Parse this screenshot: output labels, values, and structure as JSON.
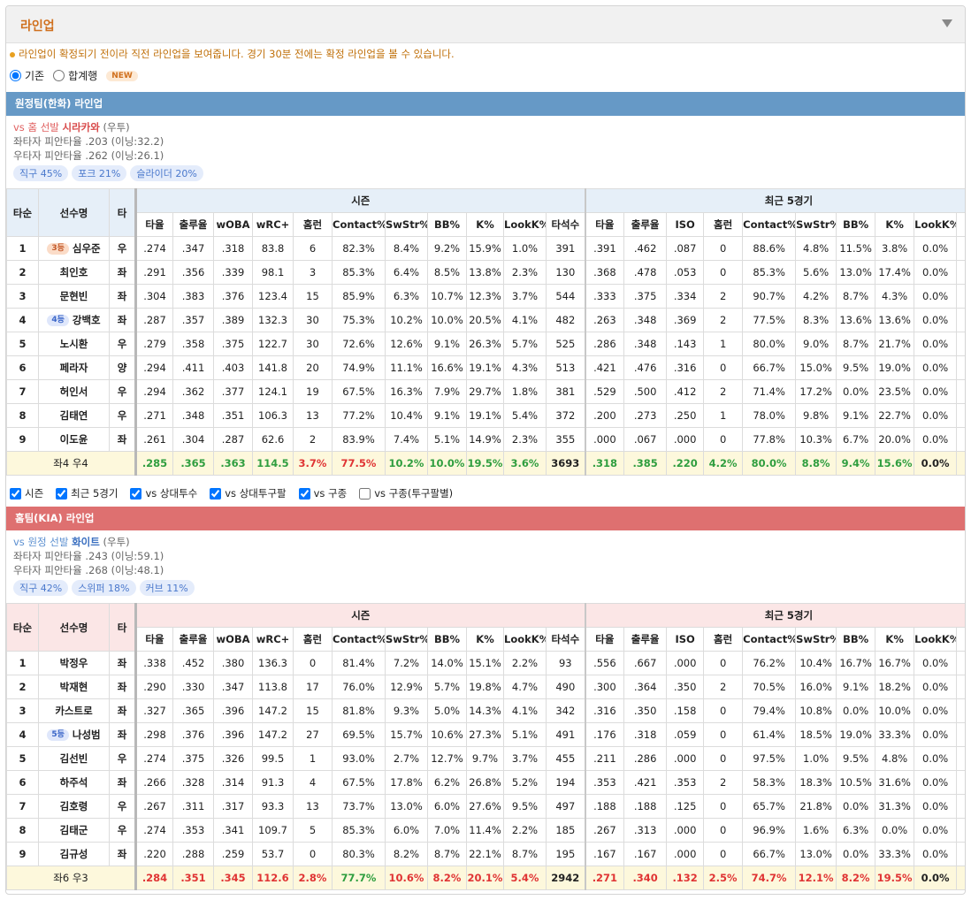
{
  "header": {
    "title": "라인업"
  },
  "notice": "라인업이 확정되기 전이라 직전 라인업을 보여줍니다. 경기 30분 전에는 확정 라인업을 볼 수 있습니다.",
  "options": [
    {
      "label": "기존",
      "checked": true
    },
    {
      "label": "합계행",
      "checked": false
    }
  ],
  "new_badge": "NEW",
  "filters": [
    {
      "label": "시즌",
      "checked": true
    },
    {
      "label": "최근 5경기",
      "checked": true
    },
    {
      "label": "vs 상대투수",
      "checked": true
    },
    {
      "label": "vs 상대투구팔",
      "checked": true
    },
    {
      "label": "vs 구종",
      "checked": true
    },
    {
      "label": "vs 구종(투구팔별)",
      "checked": false
    }
  ],
  "table_header": {
    "fixed": [
      "타순",
      "선수명",
      "타"
    ],
    "groups": [
      "시즌",
      "최근 5경기"
    ],
    "season_cols": [
      "타율",
      "출루율",
      "wOBA",
      "wRC+",
      "홈런",
      "Contact%",
      "SwStr%",
      "BB%",
      "K%",
      "LookK%",
      "타석수"
    ],
    "recent_cols": [
      "타율",
      "출루율",
      "ISO",
      "홈런",
      "Contact%",
      "SwStr%",
      "BB%",
      "K%",
      "LookK%"
    ]
  },
  "teams": [
    {
      "title": "원정팀(한화) 라인업",
      "bar_color": "#6699c6",
      "head_color": "#e6eff8",
      "vs": "vs 홈 선발",
      "vs_color": "#e06060",
      "pitcher": "시라카와",
      "pitcher_color": "#d84a4a",
      "throws": "(우투)",
      "splits": [
        "좌타자 피안타율 .203 (이닝:32.2)",
        "우타자 피안타율 .262 (이닝:26.1)"
      ],
      "pitches": [
        "직구 45%",
        "포크 21%",
        "슬라이더 20%"
      ],
      "rows": [
        {
          "order": "1",
          "badge": "3등",
          "name": "심우준",
          "hand": "우",
          "season": [
            ".274",
            ".347",
            ".318",
            "83.8",
            "6",
            "82.3%",
            "8.4%",
            "9.2%",
            "15.9%",
            "1.0%",
            "391"
          ],
          "recent": [
            ".391",
            ".462",
            ".087",
            "0",
            "88.6%",
            "4.8%",
            "11.5%",
            "3.8%",
            "0.0%"
          ]
        },
        {
          "order": "2",
          "name": "최인호",
          "hand": "좌",
          "season": [
            ".291",
            ".356",
            ".339",
            "98.1",
            "3",
            "85.3%",
            "6.4%",
            "8.5%",
            "13.8%",
            "2.3%",
            "130"
          ],
          "recent": [
            ".368",
            ".478",
            ".053",
            "0",
            "85.3%",
            "5.6%",
            "13.0%",
            "17.4%",
            "0.0%"
          ]
        },
        {
          "order": "3",
          "name": "문현빈",
          "hand": "좌",
          "season": [
            ".304",
            ".383",
            ".376",
            "123.4",
            "15",
            "85.9%",
            "6.3%",
            "10.7%",
            "12.3%",
            "3.7%",
            "544"
          ],
          "recent": [
            ".333",
            ".375",
            ".334",
            "2",
            "90.7%",
            "4.2%",
            "8.7%",
            "4.3%",
            "0.0%"
          ]
        },
        {
          "order": "4",
          "badge": "4등",
          "name": "강백호",
          "hand": "좌",
          "season": [
            ".287",
            ".357",
            ".389",
            "132.3",
            "30",
            "75.3%",
            "10.2%",
            "10.0%",
            "20.5%",
            "4.1%",
            "482"
          ],
          "recent": [
            ".263",
            ".348",
            ".369",
            "2",
            "77.5%",
            "8.3%",
            "13.6%",
            "13.6%",
            "0.0%"
          ]
        },
        {
          "order": "5",
          "name": "노시환",
          "hand": "우",
          "season": [
            ".279",
            ".358",
            ".375",
            "122.7",
            "30",
            "72.6%",
            "12.6%",
            "9.1%",
            "26.3%",
            "5.7%",
            "525"
          ],
          "recent": [
            ".286",
            ".348",
            ".143",
            "1",
            "80.0%",
            "9.0%",
            "8.7%",
            "21.7%",
            "0.0%"
          ]
        },
        {
          "order": "6",
          "name": "페라자",
          "hand": "양",
          "season": [
            ".294",
            ".411",
            ".403",
            "141.8",
            "20",
            "74.9%",
            "11.1%",
            "16.6%",
            "19.1%",
            "4.3%",
            "513"
          ],
          "recent": [
            ".421",
            ".476",
            ".316",
            "0",
            "66.7%",
            "15.0%",
            "9.5%",
            "19.0%",
            "0.0%"
          ]
        },
        {
          "order": "7",
          "name": "허인서",
          "hand": "우",
          "season": [
            ".294",
            ".362",
            ".377",
            "124.1",
            "19",
            "67.5%",
            "16.3%",
            "7.9%",
            "29.7%",
            "1.8%",
            "381"
          ],
          "recent": [
            ".529",
            ".500",
            ".412",
            "2",
            "71.4%",
            "17.2%",
            "0.0%",
            "23.5%",
            "0.0%"
          ]
        },
        {
          "order": "8",
          "name": "김태연",
          "hand": "우",
          "season": [
            ".271",
            ".348",
            ".351",
            "106.3",
            "13",
            "77.2%",
            "10.4%",
            "9.1%",
            "19.1%",
            "5.4%",
            "372"
          ],
          "recent": [
            ".200",
            ".273",
            ".250",
            "1",
            "78.0%",
            "9.8%",
            "9.1%",
            "22.7%",
            "0.0%"
          ]
        },
        {
          "order": "9",
          "name": "이도윤",
          "hand": "좌",
          "season": [
            ".261",
            ".304",
            ".287",
            "62.6",
            "2",
            "83.9%",
            "7.4%",
            "5.1%",
            "14.9%",
            "2.3%",
            "355"
          ],
          "recent": [
            ".000",
            ".067",
            ".000",
            "0",
            "77.8%",
            "10.3%",
            "6.7%",
            "20.0%",
            "0.0%"
          ]
        }
      ],
      "total": {
        "label": "좌4 우4",
        "season": [
          ".285",
          ".365",
          ".363",
          "114.5",
          "3.7%",
          "77.5%",
          "10.2%",
          "10.0%",
          "19.5%",
          "3.6%",
          "3693"
        ],
        "recent": [
          ".318",
          ".385",
          ".220",
          "4.2%",
          "80.0%",
          "8.8%",
          "9.4%",
          "15.6%",
          "0.0%"
        ],
        "season_colors": [
          "#2f9e3f",
          "#2f9e3f",
          "#2f9e3f",
          "#2f9e3f",
          "#e03434",
          "#e03434",
          "#2f9e3f",
          "#2f9e3f",
          "#2f9e3f",
          "#2f9e3f",
          "#222222"
        ],
        "recent_colors": [
          "#2f9e3f",
          "#2f9e3f",
          "#2f9e3f",
          "#2f9e3f",
          "#2f9e3f",
          "#2f9e3f",
          "#2f9e3f",
          "#2f9e3f",
          "#222222"
        ]
      }
    },
    {
      "title": "홈팀(KIA) 라인업",
      "bar_color": "#de7070",
      "head_color": "#fbe6e6",
      "vs": "vs 원정 선발",
      "vs_color": "#5b8fd0",
      "pitcher": "화이트",
      "pitcher_color": "#3a6fc0",
      "throws": "(우투)",
      "splits": [
        "좌타자 피안타율 .243 (이닝:59.1)",
        "우타자 피안타율 .268 (이닝:48.1)"
      ],
      "pitches": [
        "직구 42%",
        "스위퍼 18%",
        "커브 11%"
      ],
      "rows": [
        {
          "order": "1",
          "name": "박정우",
          "hand": "좌",
          "season": [
            ".338",
            ".452",
            ".380",
            "136.3",
            "0",
            "81.4%",
            "7.2%",
            "14.0%",
            "15.1%",
            "2.2%",
            "93"
          ],
          "recent": [
            ".556",
            ".667",
            ".000",
            "0",
            "76.2%",
            "10.4%",
            "16.7%",
            "16.7%",
            "0.0%"
          ]
        },
        {
          "order": "2",
          "name": "박재현",
          "hand": "좌",
          "season": [
            ".290",
            ".330",
            ".347",
            "113.8",
            "17",
            "76.0%",
            "12.9%",
            "5.7%",
            "19.8%",
            "4.7%",
            "490"
          ],
          "recent": [
            ".300",
            ".364",
            ".350",
            "2",
            "70.5%",
            "16.0%",
            "9.1%",
            "18.2%",
            "0.0%"
          ]
        },
        {
          "order": "3",
          "name": "카스트로",
          "hand": "좌",
          "season": [
            ".327",
            ".365",
            ".396",
            "147.2",
            "15",
            "81.8%",
            "9.3%",
            "5.0%",
            "14.3%",
            "4.1%",
            "342"
          ],
          "recent": [
            ".316",
            ".350",
            ".158",
            "0",
            "79.4%",
            "10.8%",
            "0.0%",
            "10.0%",
            "0.0%"
          ]
        },
        {
          "order": "4",
          "badge": "5등",
          "name": "나성범",
          "hand": "좌",
          "season": [
            ".298",
            ".376",
            ".396",
            "147.2",
            "27",
            "69.5%",
            "15.7%",
            "10.6%",
            "27.3%",
            "5.1%",
            "491"
          ],
          "recent": [
            ".176",
            ".318",
            ".059",
            "0",
            "61.4%",
            "18.5%",
            "19.0%",
            "33.3%",
            "0.0%"
          ]
        },
        {
          "order": "5",
          "name": "김선빈",
          "hand": "우",
          "season": [
            ".274",
            ".375",
            ".326",
            "99.5",
            "1",
            "93.0%",
            "2.7%",
            "12.7%",
            "9.7%",
            "3.7%",
            "455"
          ],
          "recent": [
            ".211",
            ".286",
            ".000",
            "0",
            "97.5%",
            "1.0%",
            "9.5%",
            "4.8%",
            "0.0%"
          ]
        },
        {
          "order": "6",
          "name": "하주석",
          "hand": "좌",
          "season": [
            ".266",
            ".328",
            ".314",
            "91.3",
            "4",
            "67.5%",
            "17.8%",
            "6.2%",
            "26.8%",
            "5.2%",
            "194"
          ],
          "recent": [
            ".353",
            ".421",
            ".353",
            "2",
            "58.3%",
            "18.3%",
            "10.5%",
            "31.6%",
            "0.0%"
          ]
        },
        {
          "order": "7",
          "name": "김호령",
          "hand": "우",
          "season": [
            ".267",
            ".311",
            ".317",
            "93.3",
            "13",
            "73.7%",
            "13.0%",
            "6.0%",
            "27.6%",
            "9.5%",
            "497"
          ],
          "recent": [
            ".188",
            ".188",
            ".125",
            "0",
            "65.7%",
            "21.8%",
            "0.0%",
            "31.3%",
            "0.0%"
          ]
        },
        {
          "order": "8",
          "name": "김태군",
          "hand": "우",
          "season": [
            ".274",
            ".353",
            ".341",
            "109.7",
            "5",
            "85.3%",
            "6.0%",
            "7.0%",
            "11.4%",
            "2.2%",
            "185"
          ],
          "recent": [
            ".267",
            ".313",
            ".000",
            "0",
            "96.9%",
            "1.6%",
            "6.3%",
            "0.0%",
            "0.0%"
          ]
        },
        {
          "order": "9",
          "name": "김규성",
          "hand": "좌",
          "season": [
            ".220",
            ".288",
            ".259",
            "53.7",
            "0",
            "80.3%",
            "8.2%",
            "8.7%",
            "22.1%",
            "8.7%",
            "195"
          ],
          "recent": [
            ".167",
            ".167",
            ".000",
            "0",
            "66.7%",
            "13.0%",
            "0.0%",
            "33.3%",
            "0.0%"
          ]
        }
      ],
      "total": {
        "label": "좌6 우3",
        "season": [
          ".284",
          ".351",
          ".345",
          "112.6",
          "2.8%",
          "77.7%",
          "10.6%",
          "8.2%",
          "20.1%",
          "5.4%",
          "2942"
        ],
        "recent": [
          ".271",
          ".340",
          ".132",
          "2.5%",
          "74.7%",
          "12.1%",
          "8.2%",
          "19.5%",
          "0.0%"
        ],
        "season_colors": [
          "#e03434",
          "#e03434",
          "#e03434",
          "#e03434",
          "#e03434",
          "#2f9e3f",
          "#e03434",
          "#e03434",
          "#e03434",
          "#e03434",
          "#222222"
        ],
        "recent_colors": [
          "#e03434",
          "#e03434",
          "#e03434",
          "#e03434",
          "#e03434",
          "#e03434",
          "#e03434",
          "#e03434",
          "#222222"
        ]
      }
    }
  ]
}
